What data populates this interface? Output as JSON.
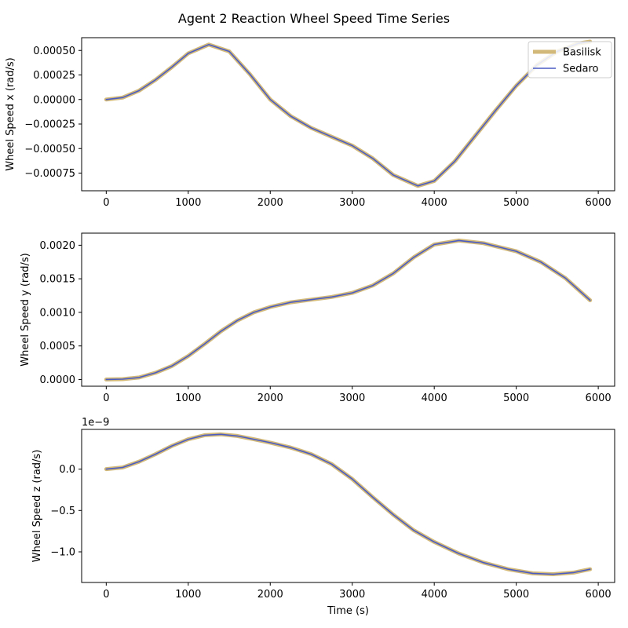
{
  "figure": {
    "title": "Agent 2 Reaction Wheel Speed Time Series"
  },
  "colors": {
    "basilisk": "#d2b97a",
    "sedaro": "#4a5cc4",
    "axis": "#000000"
  },
  "chart_data": [
    {
      "type": "line",
      "xlabel": "",
      "ylabel": "Wheel Speed x (rad/s)",
      "xlim": [
        -300,
        6200
      ],
      "ylim": [
        -0.00093,
        0.00063
      ],
      "xticks": [
        0,
        1000,
        2000,
        3000,
        4000,
        5000,
        6000
      ],
      "xtick_labels": [
        "0",
        "1000",
        "2000",
        "3000",
        "4000",
        "5000",
        "6000"
      ],
      "yticks": [
        0.0005,
        0.00025,
        0.0,
        -0.00025,
        -0.0005,
        -0.00075
      ],
      "ytick_labels": [
        "0.00050",
        "0.00025",
        "0.00000",
        "−0.00025",
        "−0.00050",
        "−0.00075"
      ],
      "legend": {
        "position": "top-right",
        "entries": [
          "Basilisk",
          "Sedaro"
        ]
      },
      "x": [
        0,
        200,
        400,
        600,
        800,
        1000,
        1250,
        1500,
        1750,
        2000,
        2250,
        2500,
        2750,
        3000,
        3250,
        3500,
        3800,
        4000,
        4250,
        4500,
        4750,
        5000,
        5250,
        5500,
        5750,
        5900
      ],
      "series": [
        {
          "name": "Basilisk",
          "values": [
            0.0,
            2e-05,
            9e-05,
            0.0002,
            0.00033,
            0.00047,
            0.00056,
            0.00049,
            0.00026,
            0.0,
            -0.00017,
            -0.00029,
            -0.00038,
            -0.00047,
            -0.0006,
            -0.00077,
            -0.00088,
            -0.00083,
            -0.00063,
            -0.00037,
            -0.00011,
            0.00014,
            0.00035,
            0.00049,
            0.00057,
            0.00059
          ]
        },
        {
          "name": "Sedaro",
          "values": [
            0.0,
            2e-05,
            9e-05,
            0.0002,
            0.00033,
            0.00047,
            0.00056,
            0.00049,
            0.00026,
            0.0,
            -0.00017,
            -0.00029,
            -0.00038,
            -0.00047,
            -0.0006,
            -0.00077,
            -0.00088,
            -0.00083,
            -0.00063,
            -0.00037,
            -0.00011,
            0.00014,
            0.00035,
            0.00049,
            0.00057,
            0.00059
          ]
        }
      ]
    },
    {
      "type": "line",
      "xlabel": "",
      "ylabel": "Wheel Speed y (rad/s)",
      "xlim": [
        -300,
        6200
      ],
      "ylim": [
        -0.0001,
        0.00218
      ],
      "xticks": [
        0,
        1000,
        2000,
        3000,
        4000,
        5000,
        6000
      ],
      "xtick_labels": [
        "0",
        "1000",
        "2000",
        "3000",
        "4000",
        "5000",
        "6000"
      ],
      "yticks": [
        0.0,
        0.0005,
        0.001,
        0.0015,
        0.002
      ],
      "ytick_labels": [
        "0.0000",
        "0.0005",
        "0.0010",
        "0.0015",
        "0.0020"
      ],
      "x": [
        0,
        200,
        400,
        600,
        800,
        1000,
        1200,
        1400,
        1600,
        1800,
        2000,
        2250,
        2500,
        2750,
        3000,
        3250,
        3500,
        3750,
        4000,
        4300,
        4600,
        5000,
        5300,
        5600,
        5900
      ],
      "series": [
        {
          "name": "Basilisk",
          "values": [
            0.0,
            5e-06,
            3e-05,
            0.0001,
            0.0002,
            0.00035,
            0.00053,
            0.00072,
            0.00088,
            0.001,
            0.00108,
            0.00115,
            0.00119,
            0.00123,
            0.00129,
            0.0014,
            0.00158,
            0.00182,
            0.00201,
            0.00207,
            0.00203,
            0.00191,
            0.00175,
            0.00151,
            0.00118
          ]
        },
        {
          "name": "Sedaro",
          "values": [
            0.0,
            5e-06,
            3e-05,
            0.0001,
            0.0002,
            0.00035,
            0.00053,
            0.00072,
            0.00088,
            0.001,
            0.00108,
            0.00115,
            0.00119,
            0.00123,
            0.00129,
            0.0014,
            0.00158,
            0.00182,
            0.00201,
            0.00207,
            0.00203,
            0.00191,
            0.00175,
            0.00151,
            0.00118
          ]
        }
      ]
    },
    {
      "type": "line",
      "xlabel": "Time (s)",
      "ylabel": "Wheel Speed z (rad/s)",
      "offset_label": "1e−9",
      "xlim": [
        -300,
        6200
      ],
      "ylim": [
        -1.37,
        0.48
      ],
      "xticks": [
        0,
        1000,
        2000,
        3000,
        4000,
        5000,
        6000
      ],
      "xtick_labels": [
        "0",
        "1000",
        "2000",
        "3000",
        "4000",
        "5000",
        "6000"
      ],
      "yticks": [
        0.0,
        -0.5,
        -1.0
      ],
      "ytick_labels": [
        "0.0",
        "−0.5",
        "−1.0"
      ],
      "x": [
        0,
        200,
        400,
        600,
        800,
        1000,
        1200,
        1400,
        1600,
        1800,
        2000,
        2250,
        2500,
        2750,
        3000,
        3250,
        3500,
        3750,
        4000,
        4300,
        4600,
        4900,
        5200,
        5450,
        5700,
        5900
      ],
      "series": [
        {
          "name": "Basilisk",
          "values": [
            0.0,
            0.02,
            0.09,
            0.18,
            0.28,
            0.36,
            0.41,
            0.42,
            0.4,
            0.36,
            0.32,
            0.26,
            0.18,
            0.06,
            -0.12,
            -0.34,
            -0.55,
            -0.74,
            -0.88,
            -1.02,
            -1.13,
            -1.21,
            -1.26,
            -1.27,
            -1.25,
            -1.21
          ]
        },
        {
          "name": "Sedaro",
          "values": [
            0.0,
            0.02,
            0.09,
            0.18,
            0.28,
            0.36,
            0.41,
            0.42,
            0.4,
            0.36,
            0.32,
            0.26,
            0.18,
            0.06,
            -0.12,
            -0.34,
            -0.55,
            -0.74,
            -0.88,
            -1.02,
            -1.13,
            -1.21,
            -1.26,
            -1.27,
            -1.25,
            -1.21
          ]
        }
      ]
    }
  ]
}
